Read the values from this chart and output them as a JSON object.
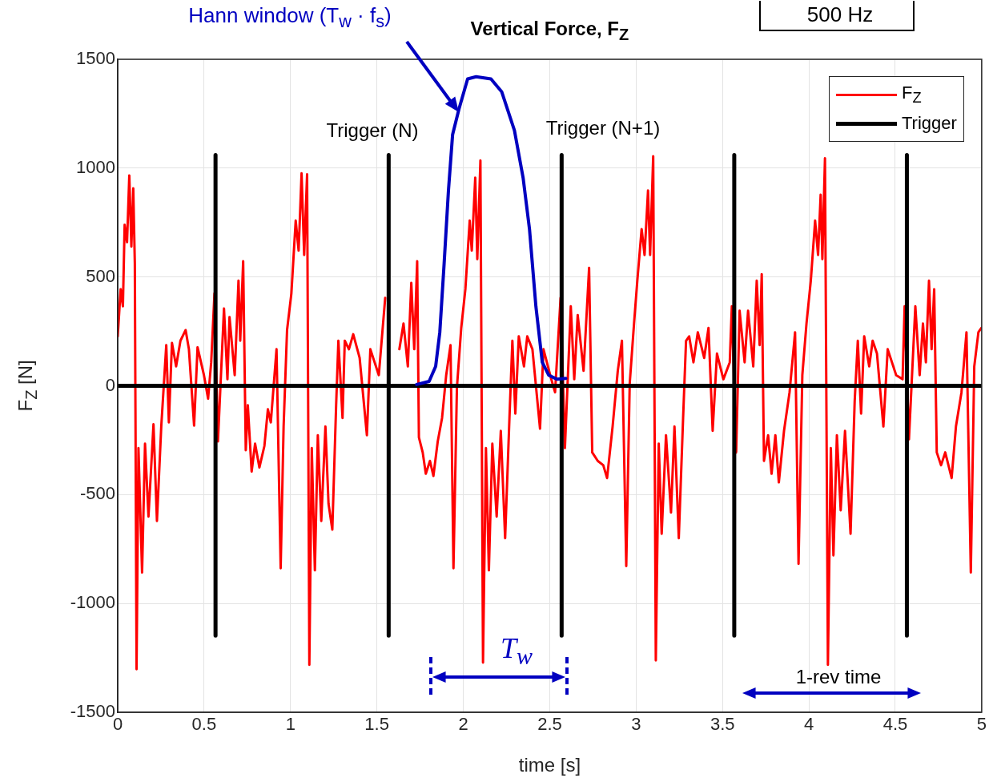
{
  "chart_data": {
    "type": "line",
    "title": "Vertical Force, F$_{Z}$",
    "xlabel": "time [s]",
    "ylabel": "F$_{Z}$ [N]",
    "xlim": [
      0,
      5
    ],
    "xticks": [
      0,
      0.5,
      1,
      1.5,
      2,
      2.5,
      3,
      3.5,
      4,
      4.5,
      5
    ],
    "ylim": [
      -1500,
      1500
    ],
    "yticks": [
      -1500,
      -1000,
      -500,
      0,
      500,
      1000,
      1500
    ],
    "grid": true,
    "legend": "top right",
    "marker": "none",
    "line_style": "solid",
    "series": [
      {
        "name": "F$_{Z}$",
        "color": "#ff0000",
        "x": [
          0,
          0.017,
          0.03,
          0.04,
          0.054,
          0.067,
          0.079,
          0.09,
          0.099,
          0.109,
          0.12,
          0.141,
          0.158,
          0.178,
          0.207,
          0.227,
          0.252,
          0.281,
          0.296,
          0.314,
          0.338,
          0.363,
          0.393,
          0.412,
          0.442,
          0.462,
          0.499,
          0.523,
          0.541,
          0.56,
          0.58,
          0.615,
          0.635,
          0.647,
          0.677,
          0.699,
          0.709,
          0.726,
          0.741,
          0.753,
          0.775,
          0.795,
          0.82,
          0.849,
          0.869,
          0.886,
          0.919,
          0.943,
          0.96,
          0.98,
          1.005,
          1.03,
          1.047,
          1.064,
          1.079,
          1.096,
          1.109,
          1.123,
          1.141,
          1.158,
          1.178,
          1.202,
          1.22,
          1.242,
          1.264,
          1.277,
          1.301,
          1.314,
          1.338,
          1.363,
          1.4,
          1.442,
          1.462,
          1.511,
          1.548,
          1.573,
          1.63,
          1.654,
          1.679,
          1.699,
          1.716,
          1.733,
          1.743,
          1.765,
          1.783,
          1.807,
          1.827,
          1.852,
          1.877,
          1.901,
          1.926,
          1.943,
          1.963,
          1.988,
          2.012,
          2.037,
          2.049,
          2.069,
          2.081,
          2.099,
          2.114,
          2.131,
          2.148,
          2.168,
          2.193,
          2.217,
          2.242,
          2.267,
          2.284,
          2.301,
          2.321,
          2.351,
          2.37,
          2.4,
          2.444,
          2.464,
          2.506,
          2.531,
          2.563,
          2.588,
          2.622,
          2.642,
          2.662,
          2.696,
          2.728,
          2.746,
          2.778,
          2.81,
          2.832,
          2.864,
          2.894,
          2.918,
          2.943,
          2.963,
          2.988,
          3.007,
          3.032,
          3.049,
          3.069,
          3.081,
          3.099,
          3.114,
          3.131,
          3.148,
          3.173,
          3.202,
          3.222,
          3.247,
          3.272,
          3.289,
          3.307,
          3.332,
          3.357,
          3.394,
          3.419,
          3.443,
          3.468,
          3.505,
          3.542,
          3.554,
          3.579,
          3.599,
          3.628,
          3.648,
          3.678,
          3.698,
          3.715,
          3.727,
          3.74,
          3.764,
          3.784,
          3.806,
          3.826,
          3.856,
          3.888,
          3.92,
          3.94,
          3.962,
          3.986,
          4.011,
          4.036,
          4.053,
          4.068,
          4.078,
          4.093,
          4.11,
          4.127,
          4.142,
          4.162,
          4.184,
          4.209,
          4.241,
          4.265,
          4.283,
          4.302,
          4.32,
          4.349,
          4.369,
          4.394,
          4.431,
          4.456,
          4.505,
          4.542,
          4.554,
          4.579,
          4.616,
          4.641,
          4.66,
          4.677,
          4.695,
          4.71,
          4.725,
          4.74,
          4.765,
          4.789,
          4.826,
          4.851,
          4.883,
          4.912,
          4.937,
          4.957,
          4.981,
          4.998
        ],
        "values": [
          227,
          444,
          365,
          740,
          660,
          966,
          640,
          907,
          562,
          -1302,
          -286,
          -858,
          -266,
          -601,
          -177,
          -621,
          -187,
          187,
          -168,
          197,
          89,
          207,
          256,
          168,
          -183,
          177,
          49,
          -59,
          108,
          424,
          -256,
          355,
          30,
          316,
          49,
          483,
          207,
          572,
          -296,
          -89,
          -394,
          -266,
          -375,
          -276,
          -108,
          -168,
          168,
          -838,
          -187,
          256,
          424,
          759,
          621,
          976,
          601,
          972,
          -1282,
          -286,
          -848,
          -227,
          -621,
          -187,
          -542,
          -661,
          -89,
          207,
          -148,
          207,
          168,
          237,
          128,
          -227,
          168,
          49,
          404,
          null,
          168,
          286,
          89,
          473,
          168,
          572,
          -237,
          -306,
          -404,
          -345,
          -414,
          -256,
          -148,
          49,
          187,
          -838,
          -10,
          266,
          444,
          759,
          621,
          956,
          582,
          1035,
          -1272,
          -286,
          -848,
          -266,
          -601,
          -207,
          -700,
          -148,
          207,
          -128,
          227,
          89,
          227,
          168,
          -197,
          168,
          39,
          -30,
          404,
          -286,
          365,
          30,
          325,
          69,
          542,
          -306,
          -345,
          -365,
          -424,
          -187,
          69,
          207,
          -828,
          10,
          286,
          483,
          720,
          601,
          897,
          601,
          1055,
          -1262,
          -266,
          -680,
          -227,
          -582,
          -187,
          -700,
          -148,
          207,
          227,
          108,
          246,
          128,
          266,
          -207,
          148,
          30,
          108,
          365,
          -306,
          345,
          108,
          345,
          89,
          483,
          187,
          513,
          -345,
          -227,
          -404,
          -227,
          -444,
          -207,
          -30,
          246,
          -818,
          49,
          286,
          483,
          759,
          601,
          878,
          582,
          1045,
          -1282,
          -286,
          -779,
          -227,
          -572,
          -207,
          -680,
          -69,
          207,
          -128,
          227,
          89,
          207,
          148,
          -187,
          168,
          49,
          30,
          365,
          -246,
          365,
          49,
          286,
          108,
          483,
          168,
          444,
          -306,
          -365,
          -306,
          -424,
          -187,
          -30,
          246,
          -858,
          89,
          246,
          266
        ]
      },
      {
        "name": "Trigger",
        "color": "#000000",
        "x": [
          0,
          0.566,
          0.566,
          0.566,
          0.566,
          1.568,
          1.568,
          1.568,
          1.568,
          2.569,
          2.569,
          2.569,
          2.569,
          3.568,
          3.568,
          3.568,
          3.568,
          4.567,
          4.567,
          4.567,
          4.567,
          5
        ],
        "values": [
          0,
          0,
          1060,
          -1148,
          0,
          0,
          1060,
          -1148,
          0,
          0,
          1060,
          -1148,
          0,
          0,
          1060,
          -1148,
          0,
          0,
          1060,
          -1148,
          0,
          0
        ]
      },
      {
        "color": "#0000c0",
        "x": [
          1.73,
          1.802,
          1.84,
          1.864,
          1.889,
          1.914,
          1.938,
          1.975,
          2.025,
          2.074,
          2.16,
          2.222,
          2.296,
          2.346,
          2.383,
          2.42,
          2.457,
          2.494,
          2.543,
          2.593
        ],
        "values": [
          6,
          20,
          89,
          246,
          562,
          897,
          1154,
          1272,
          1410,
          1420,
          1410,
          1351,
          1173,
          956,
          720,
          365,
          108,
          49,
          30,
          34
        ]
      }
    ],
    "annotations": [
      "Hann window (T$_{w}$ · f$_{s}$)",
      "Trigger (N)",
      "Trigger (N+1)",
      "500 Hz",
      "T$_{w}$",
      "1-rev time"
    ]
  }
}
